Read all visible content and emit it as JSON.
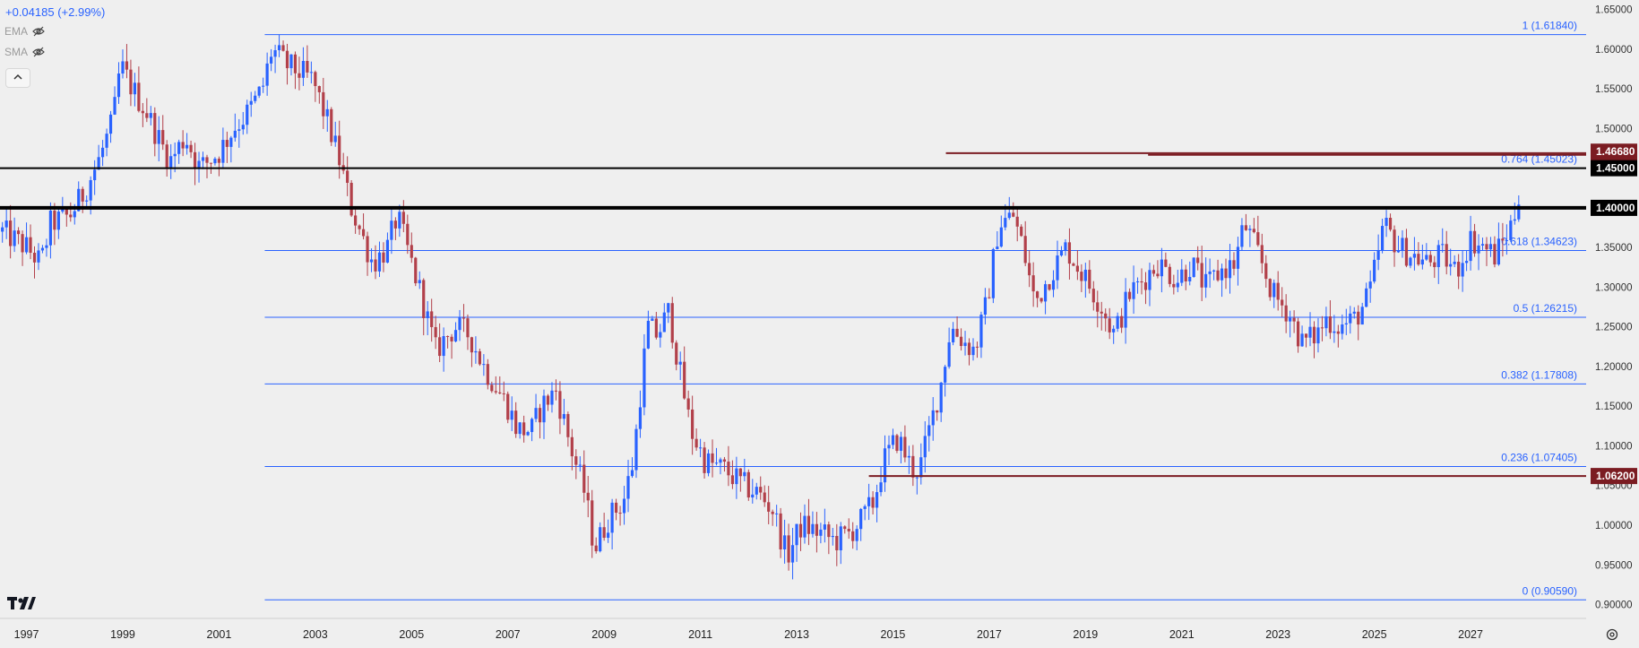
{
  "legend": {
    "change": "+0.04185 (+2.99%)",
    "ema_label": "EMA",
    "sma_label": "SMA",
    "collapse_icon": "chevron-up-icon"
  },
  "colors": {
    "up": "#2962ff",
    "down": "#b2404a",
    "fib": "#2962ff",
    "marker": "#7b1c22",
    "black": "#000000",
    "background": "#efefef"
  },
  "chart_data": {
    "type": "candlestick",
    "interval": "monthly",
    "x_ticks": [
      "1997",
      "1999",
      "2001",
      "2003",
      "2005",
      "2007",
      "2009",
      "2011",
      "2013",
      "2015",
      "2017",
      "2019",
      "2021",
      "2023",
      "2025",
      "2027"
    ],
    "x_tick_years": [
      1997,
      1999,
      2001,
      2003,
      2005,
      2007,
      2009,
      2011,
      2013,
      2015,
      2017,
      2019,
      2021,
      2023,
      2025,
      2027
    ],
    "y_ticks": [
      "1.65000",
      "1.60000",
      "1.55000",
      "1.50000",
      "1.45000",
      "1.40000",
      "1.35000",
      "1.30000",
      "1.25000",
      "1.20000",
      "1.15000",
      "1.10000",
      "1.05000",
      "1.00000",
      "0.95000",
      "0.90000"
    ],
    "y_tick_values": [
      1.65,
      1.6,
      1.55,
      1.5,
      1.45,
      1.4,
      1.35,
      1.3,
      1.25,
      1.2,
      1.15,
      1.1,
      1.05,
      1.0,
      0.95,
      0.9
    ],
    "ylim": [
      0.8825,
      1.662
    ],
    "xlim": [
      1996.45,
      2029.4
    ],
    "fib_levels": [
      {
        "label": "1 (1.61840)",
        "value": 1.6184
      },
      {
        "label": "0.764 (1.45023)",
        "value": 1.45023
      },
      {
        "label": "0.618 (1.34623)",
        "value": 1.34623
      },
      {
        "label": "0.5 (1.26215)",
        "value": 1.26215
      },
      {
        "label": "0.382 (1.17808)",
        "value": 1.17808
      },
      {
        "label": "0.236 (1.07405)",
        "value": 1.07405
      },
      {
        "label": "0 (0.90590)",
        "value": 0.9059
      }
    ],
    "fib_x_range": [
      2001.95,
      2029.4
    ],
    "horizontal_levels": [
      {
        "label": "1.45000",
        "value": 1.45,
        "color": "#000000"
      },
      {
        "label": "1.40000",
        "value": 1.4,
        "color": "#000000"
      }
    ],
    "price_markers": [
      {
        "label": "1.46899",
        "value": 1.46899,
        "from": 2016.1
      },
      {
        "label": "1.46680",
        "value": 1.4668,
        "from": 2020.3
      },
      {
        "label": "1.06200",
        "value": 1.062,
        "from": 2014.5
      }
    ],
    "path": [
      [
        1996.5,
        1.37
      ],
      [
        1997.0,
        1.35
      ],
      [
        1997.3,
        1.33
      ],
      [
        1997.5,
        1.38
      ],
      [
        1997.9,
        1.39
      ],
      [
        1998.2,
        1.42
      ],
      [
        1998.5,
        1.46
      ],
      [
        1998.8,
        1.51
      ],
      [
        1998.95,
        1.58
      ],
      [
        1999.2,
        1.55
      ],
      [
        1999.5,
        1.52
      ],
      [
        1999.8,
        1.48
      ],
      [
        2000.0,
        1.46
      ],
      [
        2000.3,
        1.49
      ],
      [
        2000.6,
        1.45
      ],
      [
        2001.0,
        1.47
      ],
      [
        2001.3,
        1.5
      ],
      [
        2001.6,
        1.52
      ],
      [
        2001.9,
        1.55
      ],
      [
        2002.1,
        1.6
      ],
      [
        2002.4,
        1.58
      ],
      [
        2002.7,
        1.57
      ],
      [
        2002.95,
        1.56
      ],
      [
        2003.3,
        1.5
      ],
      [
        2003.5,
        1.46
      ],
      [
        2003.75,
        1.4
      ],
      [
        2004.0,
        1.36
      ],
      [
        2004.2,
        1.33
      ],
      [
        2004.5,
        1.35
      ],
      [
        2004.7,
        1.39
      ],
      [
        2004.9,
        1.35
      ],
      [
        2005.2,
        1.29
      ],
      [
        2005.5,
        1.22
      ],
      [
        2005.9,
        1.25
      ],
      [
        2006.2,
        1.24
      ],
      [
        2006.5,
        1.2
      ],
      [
        2006.8,
        1.17
      ],
      [
        2007.0,
        1.15
      ],
      [
        2007.2,
        1.12
      ],
      [
        2007.5,
        1.12
      ],
      [
        2007.7,
        1.15
      ],
      [
        2008.0,
        1.17
      ],
      [
        2008.3,
        1.1
      ],
      [
        2008.6,
        1.04
      ],
      [
        2008.8,
        0.97
      ],
      [
        2009.1,
        1.01
      ],
      [
        2009.4,
        1.03
      ],
      [
        2009.6,
        1.08
      ],
      [
        2009.9,
        1.25
      ],
      [
        2010.1,
        1.24
      ],
      [
        2010.35,
        1.27
      ],
      [
        2010.55,
        1.2
      ],
      [
        2010.8,
        1.12
      ],
      [
        2011.1,
        1.08
      ],
      [
        2011.5,
        1.07
      ],
      [
        2011.9,
        1.05
      ],
      [
        2012.2,
        1.04
      ],
      [
        2012.5,
        1.02
      ],
      [
        2012.8,
        0.96
      ],
      [
        2013.1,
        1.0
      ],
      [
        2013.5,
        0.99
      ],
      [
        2013.8,
        0.98
      ],
      [
        2014.1,
        0.99
      ],
      [
        2014.4,
        1.01
      ],
      [
        2014.6,
        1.03
      ],
      [
        2014.8,
        1.08
      ],
      [
        2015.1,
        1.11
      ],
      [
        2015.4,
        1.07
      ],
      [
        2015.55,
        1.07
      ],
      [
        2015.8,
        1.13
      ],
      [
        2016.0,
        1.18
      ],
      [
        2016.2,
        1.25
      ],
      [
        2016.5,
        1.23
      ],
      [
        2016.7,
        1.22
      ],
      [
        2016.95,
        1.28
      ],
      [
        2017.2,
        1.38
      ],
      [
        2017.5,
        1.39
      ],
      [
        2017.7,
        1.35
      ],
      [
        2017.95,
        1.28
      ],
      [
        2018.3,
        1.32
      ],
      [
        2018.6,
        1.35
      ],
      [
        2018.9,
        1.32
      ],
      [
        2019.3,
        1.28
      ],
      [
        2019.6,
        1.24
      ],
      [
        2019.9,
        1.29
      ],
      [
        2020.2,
        1.31
      ],
      [
        2020.5,
        1.33
      ],
      [
        2020.9,
        1.31
      ],
      [
        2021.2,
        1.33
      ],
      [
        2021.5,
        1.3
      ],
      [
        2021.8,
        1.32
      ],
      [
        2022.1,
        1.33
      ],
      [
        2022.3,
        1.38
      ],
      [
        2022.6,
        1.34
      ],
      [
        2022.9,
        1.29
      ],
      [
        2023.2,
        1.27
      ],
      [
        2023.5,
        1.23
      ],
      [
        2023.8,
        1.24
      ],
      [
        2024.0,
        1.26
      ],
      [
        2024.3,
        1.25
      ],
      [
        2024.6,
        1.26
      ],
      [
        2024.9,
        1.29
      ],
      [
        2025.2,
        1.38
      ],
      [
        2025.5,
        1.35
      ],
      [
        2025.8,
        1.34
      ],
      [
        2026.1,
        1.33
      ],
      [
        2026.4,
        1.34
      ],
      [
        2026.7,
        1.32
      ],
      [
        2027.0,
        1.36
      ],
      [
        2027.3,
        1.35
      ],
      [
        2027.5,
        1.34
      ],
      [
        2027.7,
        1.36
      ],
      [
        2027.85,
        1.38
      ],
      [
        2027.95,
        1.4
      ],
      [
        2028.03,
        1.43
      ]
    ],
    "current_price": 1.43
  }
}
